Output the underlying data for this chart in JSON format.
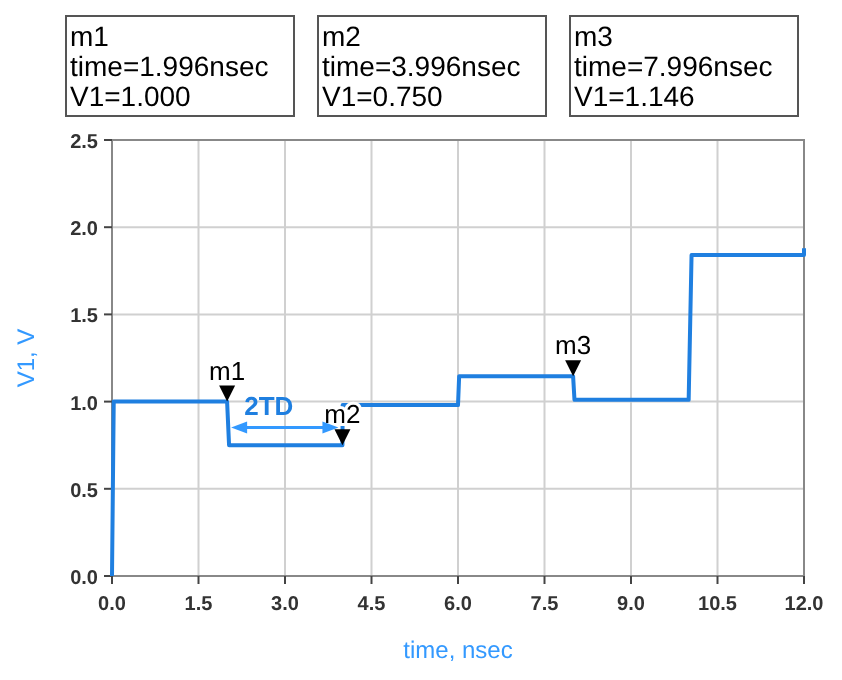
{
  "chart_data": {
    "type": "line",
    "xlabel": "time, nsec",
    "ylabel": "V1, V",
    "x": [
      0,
      0.03,
      1.996,
      2.03,
      3.996,
      4.0,
      6.0,
      6.02,
      7.996,
      8.02,
      10.0,
      10.05,
      12.0,
      12.0
    ],
    "series": [
      {
        "color": "#1f7fe0",
        "values": [
          0,
          1.0,
          1.0,
          0.75,
          0.75,
          0.98,
          0.98,
          1.146,
          1.146,
          1.01,
          1.01,
          1.84,
          1.84,
          1.88
        ]
      }
    ],
    "xlim": [
      0,
      12
    ],
    "xticks": [
      {
        "value": 0,
        "label": "0.0"
      },
      {
        "value": 1.5,
        "label": "1.5"
      },
      {
        "value": 3,
        "label": "3.0"
      },
      {
        "value": 4.5,
        "label": "4.5"
      },
      {
        "value": 6,
        "label": "6.0"
      },
      {
        "value": 7.5,
        "label": "7.5"
      },
      {
        "value": 9,
        "label": "9.0"
      },
      {
        "value": 10.5,
        "label": "10.5"
      },
      {
        "value": 12,
        "label": "12.0"
      }
    ],
    "ylim": [
      0,
      2.5
    ],
    "yticks": [
      {
        "value": 0,
        "label": "0.0"
      },
      {
        "value": 0.5,
        "label": "0.5"
      },
      {
        "value": 1,
        "label": "1.0"
      },
      {
        "value": 1.5,
        "label": "1.5"
      },
      {
        "value": 2,
        "label": "2.0"
      },
      {
        "value": 2.5,
        "label": "2.5"
      }
    ],
    "grid": true,
    "marker": "none",
    "line_style": "solid",
    "annotations": [
      "m1\ntime=1.996nsec\nV1=1.000",
      "m2\ntime=3.996nsec\nV1=0.750",
      "m3\ntime=7.996nsec\nV1=1.146",
      {
        "text": "m1",
        "x": 1.996,
        "y": 1.0
      },
      {
        "text": "m2",
        "x": 3.996,
        "y": 0.75
      },
      {
        "text": "m3",
        "x": 7.996,
        "y": 1.146
      },
      "2TD"
    ]
  }
}
